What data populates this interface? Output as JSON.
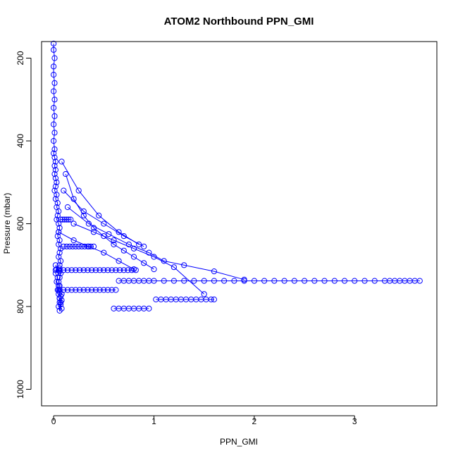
{
  "chart_data": {
    "type": "line",
    "title": "ATOM2 Northbound PPN_GMI",
    "xlabel": "PPN_GMI",
    "ylabel": "Pressure (mbar)",
    "xlim": [
      -0.12,
      3.82
    ],
    "ylim": [
      1040,
      160
    ],
    "y_reversed": true,
    "x_ticks": [
      0,
      1,
      2,
      3
    ],
    "x_tick_labels": [
      "0",
      "1",
      "2",
      "3"
    ],
    "y_ticks": [
      200,
      400,
      600,
      800,
      1000
    ],
    "y_tick_labels": [
      "200",
      "400",
      "600",
      "800",
      "1000"
    ],
    "grid": false,
    "marker": "open-circle",
    "color": "#0000ff",
    "series": [
      {
        "x": [
          0.0,
          0.0,
          0.01,
          0.0,
          0.0,
          0.01,
          0.0,
          0.01,
          0.0,
          0.01,
          0.0,
          0.01,
          0.0,
          0.01,
          0.0,
          0.01,
          0.02,
          0.01,
          0.02,
          0.01,
          0.02,
          0.03,
          0.02,
          0.01,
          0.03,
          0.02,
          0.04,
          0.03,
          0.05,
          0.04,
          0.03,
          0.05,
          0.06,
          0.05,
          0.04,
          0.06,
          0.05,
          0.07,
          0.06,
          0.05,
          0.07,
          0.06
        ],
        "y": [
          165,
          180,
          200,
          220,
          240,
          260,
          280,
          300,
          320,
          340,
          360,
          380,
          400,
          420,
          430,
          440,
          450,
          460,
          470,
          480,
          490,
          500,
          510,
          520,
          530,
          540,
          550,
          560,
          570,
          580,
          590,
          600,
          610,
          620,
          630,
          640,
          650,
          660,
          670,
          680,
          690,
          700
        ]
      },
      {
        "x": [
          0.02,
          0.03,
          0.02,
          0.04,
          0.03,
          0.05,
          0.04,
          0.06,
          0.05,
          0.07,
          0.06,
          0.08,
          0.06,
          0.07,
          0.05,
          0.08,
          0.06,
          0.07,
          0.06,
          0.08,
          0.05,
          0.06,
          0.05,
          0.06,
          0.07,
          0.06,
          0.05,
          0.06
        ],
        "y": [
          700,
          710,
          720,
          730,
          740,
          750,
          760,
          765,
          770,
          775,
          780,
          785,
          790,
          795,
          800,
          805,
          810,
          790,
          780,
          770,
          760,
          750,
          740,
          730,
          720,
          715,
          712,
          708
        ]
      },
      {
        "x": [
          0.02,
          0.06,
          0.1,
          0.14,
          0.18,
          0.22,
          0.26,
          0.3,
          0.34,
          0.38,
          0.42,
          0.46,
          0.5,
          0.54,
          0.58,
          0.62,
          0.66,
          0.7,
          0.74,
          0.78,
          0.82
        ],
        "y": [
          712,
          712,
          712,
          712,
          712,
          712,
          712,
          712,
          712,
          712,
          712,
          712,
          712,
          712,
          712,
          712,
          712,
          712,
          712,
          712,
          712
        ]
      },
      {
        "x": [
          0.06,
          0.1,
          0.14,
          0.18,
          0.22,
          0.26,
          0.3,
          0.34,
          0.38,
          0.42,
          0.46,
          0.5,
          0.54,
          0.58,
          0.62
        ],
        "y": [
          760,
          760,
          760,
          760,
          760,
          760,
          760,
          760,
          760,
          760,
          760,
          760,
          760,
          760,
          760
        ]
      },
      {
        "x": [
          0.1,
          0.13,
          0.16,
          0.19,
          0.22,
          0.25,
          0.28,
          0.31,
          0.34,
          0.37,
          0.4
        ],
        "y": [
          655,
          655,
          655,
          655,
          655,
          655,
          655,
          655,
          655,
          655,
          655
        ]
      },
      {
        "x": [
          0.07,
          0.09,
          0.11,
          0.13,
          0.15,
          0.17
        ],
        "y": [
          590,
          590,
          590,
          590,
          590,
          590
        ]
      },
      {
        "x": [
          0.65,
          0.7,
          0.75,
          0.8,
          0.85,
          0.9,
          0.95,
          1.0,
          1.1,
          1.2,
          1.3,
          1.4,
          1.5,
          1.6,
          1.7,
          1.8,
          1.9,
          2.0,
          2.1,
          2.2,
          2.3,
          2.4,
          2.5,
          2.6,
          2.7,
          2.8,
          2.9,
          3.0,
          3.1,
          3.2,
          3.3,
          3.35,
          3.4,
          3.45,
          3.5,
          3.55,
          3.6,
          3.65
        ],
        "y": [
          738,
          738,
          738,
          738,
          738,
          738,
          738,
          738,
          738,
          738,
          738,
          738,
          738,
          738,
          738,
          738,
          738,
          738,
          738,
          738,
          738,
          738,
          738,
          738,
          738,
          738,
          738,
          738,
          738,
          738,
          738,
          738,
          738,
          738,
          738,
          738,
          738,
          738
        ]
      },
      {
        "x": [
          1.02,
          1.07,
          1.12,
          1.17,
          1.22,
          1.27,
          1.32,
          1.37,
          1.42,
          1.47,
          1.52,
          1.57,
          1.6
        ],
        "y": [
          783,
          783,
          783,
          783,
          783,
          783,
          783,
          783,
          783,
          783,
          783,
          783,
          783
        ]
      },
      {
        "x": [
          0.6,
          0.65,
          0.7,
          0.75,
          0.8,
          0.85,
          0.9,
          0.95
        ],
        "y": [
          805,
          805,
          805,
          805,
          805,
          805,
          805,
          805
        ]
      },
      {
        "x": [
          0.12,
          0.2,
          0.3,
          0.4,
          0.5,
          0.6,
          0.7,
          0.8,
          0.9,
          1.0
        ],
        "y": [
          480,
          540,
          580,
          610,
          630,
          650,
          665,
          680,
          695,
          710
        ]
      },
      {
        "x": [
          0.1,
          0.3,
          0.5,
          0.7,
          0.9
        ],
        "y": [
          520,
          570,
          600,
          630,
          655
        ]
      },
      {
        "x": [
          0.14,
          0.35,
          0.55,
          0.75,
          0.95,
          1.1,
          1.3,
          1.6,
          1.9
        ],
        "y": [
          560,
          600,
          625,
          650,
          670,
          690,
          700,
          715,
          735
        ]
      },
      {
        "x": [
          0.08,
          0.25,
          0.45,
          0.65,
          0.85
        ],
        "y": [
          450,
          520,
          580,
          620,
          650
        ]
      },
      {
        "x": [
          0.2,
          0.4,
          0.6,
          0.8,
          1.0,
          1.2,
          1.5
        ],
        "y": [
          600,
          620,
          640,
          660,
          680,
          705,
          770
        ]
      },
      {
        "x": [
          0.05,
          0.2,
          0.35,
          0.5,
          0.65,
          0.8
        ],
        "y": [
          620,
          640,
          655,
          670,
          690,
          710
        ]
      }
    ]
  }
}
